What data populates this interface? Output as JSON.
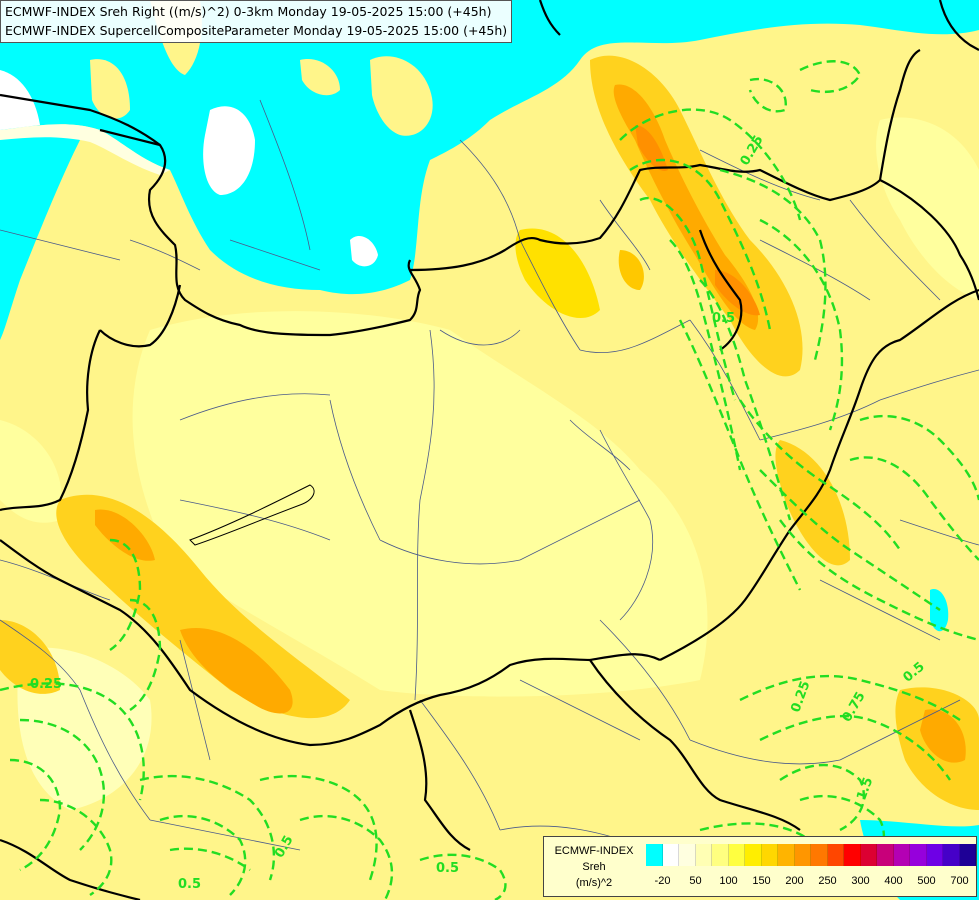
{
  "titles": {
    "line1": "ECMWF-INDEX Sreh Right ((m/s)^2) 0-3km Monday 19-05-2025 15:00 (+45h)",
    "line2": "ECMWF-INDEX SupercellCompositeParameter Monday 19-05-2025 15:00 (+45h)"
  },
  "legend": {
    "brand": "ECMWF-INDEX",
    "parameter": "Sreh",
    "unit": "(m/s)^2",
    "colors": [
      "#00ffff",
      "#ffffff",
      "#ffffe0",
      "#ffffb4",
      "#ffff80",
      "#ffff40",
      "#ffee00",
      "#ffd700",
      "#ffb400",
      "#ff9600",
      "#ff7800",
      "#ff4600",
      "#ff0000",
      "#dc0032",
      "#c8007a",
      "#b400b4",
      "#9600dc",
      "#6e00e6",
      "#4600c8",
      "#1e0096"
    ],
    "ticks": [
      {
        "label": "-20",
        "index": 1
      },
      {
        "label": "50",
        "index": 3
      },
      {
        "label": "100",
        "index": 5
      },
      {
        "label": "150",
        "index": 7
      },
      {
        "label": "200",
        "index": 9
      },
      {
        "label": "250",
        "index": 11
      },
      {
        "label": "300",
        "index": 13
      },
      {
        "label": "400",
        "index": 15
      },
      {
        "label": "500",
        "index": 17
      },
      {
        "label": "700",
        "index": 19
      }
    ]
  },
  "contour_labels": [
    {
      "text": "0.25",
      "id": "w"
    },
    {
      "text": "0.25",
      "id": "ne"
    },
    {
      "text": "0.5",
      "id": "e"
    },
    {
      "text": "0.5",
      "id": "sw1"
    },
    {
      "text": "0.5",
      "id": "sw2"
    },
    {
      "text": "0.5",
      "id": "s"
    },
    {
      "text": "0.25",
      "id": "se1"
    },
    {
      "text": "0.75",
      "id": "se2"
    },
    {
      "text": "1.5",
      "id": "se3"
    },
    {
      "text": "0.5",
      "id": "se4"
    }
  ]
}
